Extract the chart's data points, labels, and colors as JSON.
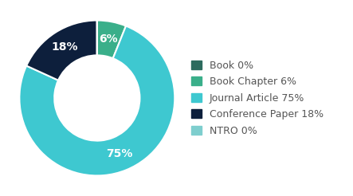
{
  "labels": [
    "Book",
    "Book Chapter",
    "Journal Article",
    "Conference Paper",
    "NTRO"
  ],
  "values": [
    0.001,
    6,
    75,
    18,
    0.001
  ],
  "colors": [
    "#2d6b5e",
    "#3aaf8a",
    "#3ec8d0",
    "#0d1f3c",
    "#7ecece"
  ],
  "display_labels": [
    "Book 0%",
    "Book Chapter 6%",
    "Journal Article 75%",
    "Conference Paper 18%",
    "NTRO 0%"
  ],
  "pct_labels": [
    "",
    "6%",
    "75%",
    "18%",
    ""
  ],
  "background_color": "#ffffff",
  "text_color": "#555555",
  "legend_fontsize": 9,
  "pct_fontsize": 10,
  "donut_width": 0.45
}
